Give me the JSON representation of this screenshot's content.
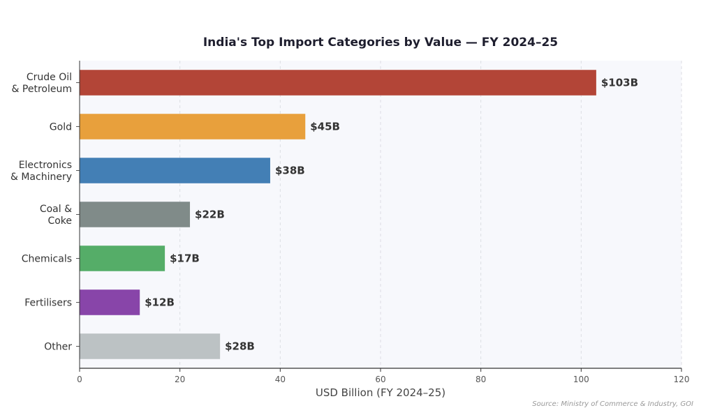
{
  "chart_data": {
    "type": "bar",
    "orientation": "horizontal",
    "title": "India's Top Import Categories by Value — FY 2024–25",
    "xlabel": "USD Billion (FY 2024–25)",
    "ylabel": "",
    "xlim": [
      0,
      120
    ],
    "xticks": [
      0,
      20,
      40,
      60,
      80,
      100,
      120
    ],
    "grid": true,
    "categories": [
      [
        "Crude Oil",
        "& Petroleum"
      ],
      [
        "Gold"
      ],
      [
        "Electronics",
        "& Machinery"
      ],
      [
        "Coal &",
        "Coke"
      ],
      [
        "Chemicals"
      ],
      [
        "Fertilisers"
      ],
      [
        "Other"
      ]
    ],
    "values": [
      103,
      45,
      38,
      22,
      17,
      12,
      28
    ],
    "value_labels": [
      "$103B",
      "$45B",
      "$38B",
      "$22B",
      "$17B",
      "$12B",
      "$28B"
    ],
    "colors": [
      "#b34537",
      "#e8a03c",
      "#437fb5",
      "#808b89",
      "#55ad68",
      "#8845a9",
      "#bcc2c4"
    ],
    "plot_background": "#f7f8fc",
    "source": "Source: Ministry of Commerce & Industry, GOI"
  }
}
